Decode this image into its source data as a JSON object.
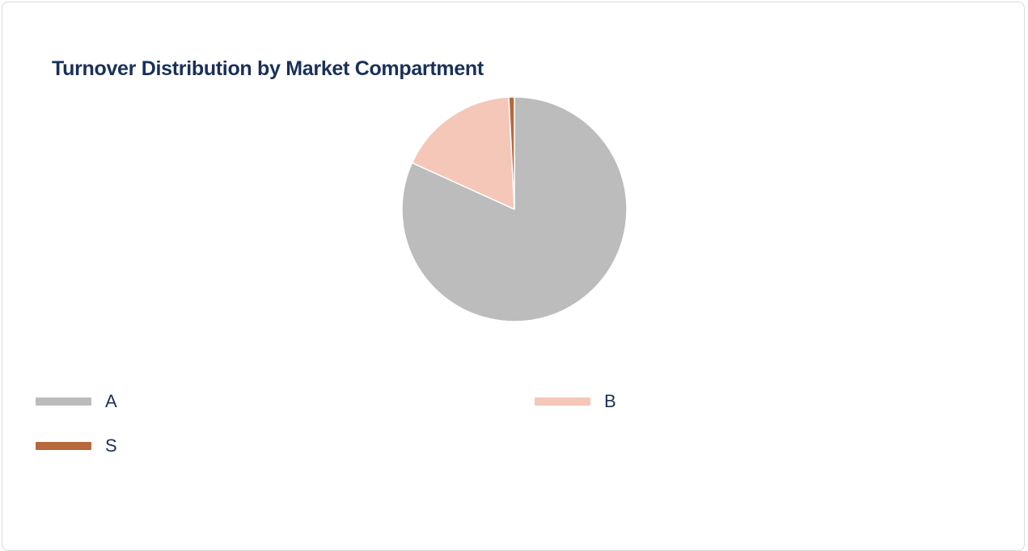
{
  "chart_data": {
    "type": "pie",
    "title": "Turnover Distribution by Market Compartment",
    "slices": [
      {
        "label": "A",
        "value": 81.8,
        "color": "#bcbcbc"
      },
      {
        "label": "B",
        "value": 17.4,
        "color": "#f4c7b8"
      },
      {
        "label": "S",
        "value": 0.8,
        "color": "#b5693d"
      }
    ],
    "legend_position": "bottom"
  }
}
